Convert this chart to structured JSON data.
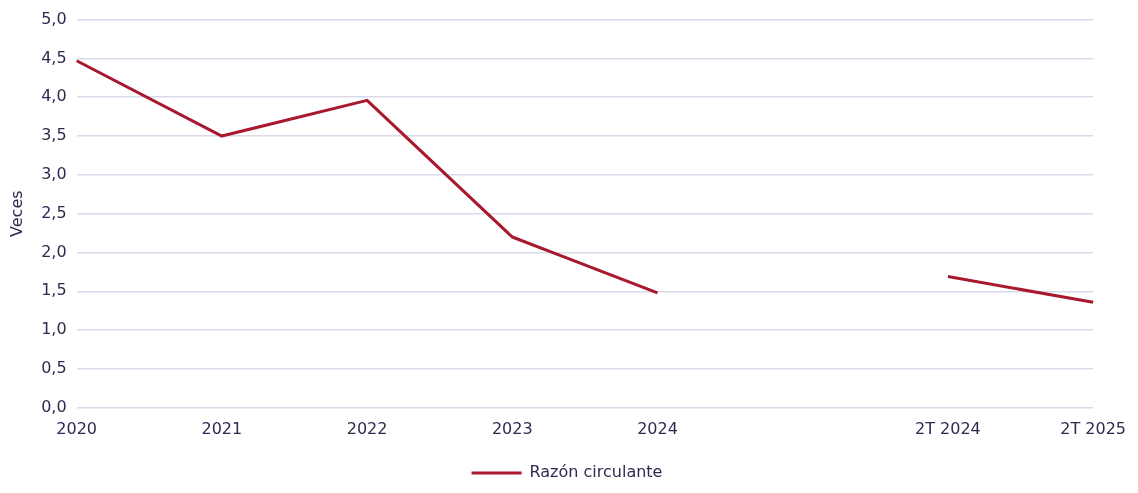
{
  "chart_data": {
    "type": "line",
    "ylabel": "Veces",
    "categories": [
      "2020",
      "2021",
      "2022",
      "2023",
      "2024",
      null,
      "2T 2024",
      "2T 2025"
    ],
    "series": [
      {
        "name": "Razón circulante",
        "color": "#a8192e",
        "values": [
          4.47,
          3.5,
          3.96,
          2.2,
          1.48,
          null,
          1.69,
          1.36
        ]
      }
    ],
    "ylim": [
      0,
      5
    ],
    "yticks": [
      {
        "value": 0,
        "label": "0,0"
      },
      {
        "value": 0.5,
        "label": "0,5"
      },
      {
        "value": 1,
        "label": "1,0"
      },
      {
        "value": 1.5,
        "label": "1,5"
      },
      {
        "value": 2,
        "label": "2,0"
      },
      {
        "value": 2.5,
        "label": "2,5"
      },
      {
        "value": 3,
        "label": "3,0"
      },
      {
        "value": 3.5,
        "label": "3,5"
      },
      {
        "value": 4,
        "label": "4,0"
      },
      {
        "value": 4.5,
        "label": "4,5"
      },
      {
        "value": 5,
        "label": "5,0"
      }
    ],
    "grid": "y",
    "legend": "bottom",
    "marker": "none",
    "line_style": "solid"
  }
}
